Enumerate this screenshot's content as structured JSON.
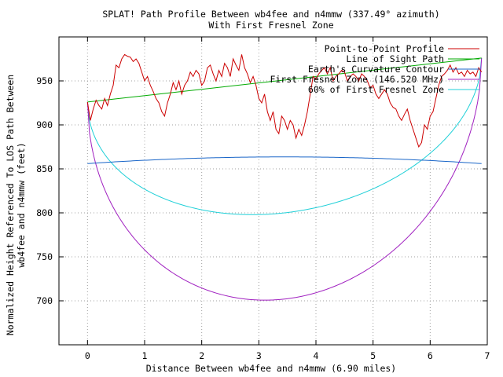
{
  "chart_data": {
    "type": "line",
    "title": "SPLAT! Path Profile Between wb4fee and n4mmw (337.49° azimuth)",
    "subtitle": "With First Fresnel Zone",
    "xlabel": "Distance Between wb4fee and n4mmw (6.90 miles)",
    "ylabel_line1": "Normalized Height Referenced To LOS Path Between",
    "ylabel_line2": "wb4fee and n4mmw (feet)",
    "xlim": [
      -0.5,
      7
    ],
    "ylim": [
      650,
      1000
    ],
    "xticks": [
      0,
      1,
      2,
      3,
      4,
      5,
      6,
      7
    ],
    "yticks": [
      700,
      750,
      800,
      850,
      900,
      950
    ],
    "grid": true,
    "legend_position": "top-right",
    "series": [
      {
        "name": "Point-to-Point Profile",
        "color": "#cc0000",
        "x": [
          0,
          0.05,
          0.1,
          0.15,
          0.2,
          0.25,
          0.3,
          0.35,
          0.4,
          0.45,
          0.5,
          0.55,
          0.6,
          0.65,
          0.7,
          0.75,
          0.8,
          0.85,
          0.9,
          0.95,
          1.0,
          1.05,
          1.1,
          1.15,
          1.2,
          1.25,
          1.3,
          1.35,
          1.4,
          1.45,
          1.5,
          1.55,
          1.6,
          1.65,
          1.7,
          1.75,
          1.8,
          1.85,
          1.9,
          1.95,
          2.0,
          2.05,
          2.1,
          2.15,
          2.2,
          2.25,
          2.3,
          2.35,
          2.4,
          2.45,
          2.5,
          2.55,
          2.6,
          2.65,
          2.7,
          2.75,
          2.8,
          2.85,
          2.9,
          2.95,
          3.0,
          3.05,
          3.1,
          3.15,
          3.2,
          3.25,
          3.3,
          3.35,
          3.4,
          3.45,
          3.5,
          3.55,
          3.6,
          3.65,
          3.7,
          3.75,
          3.8,
          3.85,
          3.9,
          3.95,
          4.0,
          4.05,
          4.1,
          4.15,
          4.2,
          4.25,
          4.3,
          4.35,
          4.4,
          4.45,
          4.5,
          4.55,
          4.6,
          4.65,
          4.7,
          4.75,
          4.8,
          4.85,
          4.9,
          4.95,
          5.0,
          5.05,
          5.1,
          5.15,
          5.2,
          5.25,
          5.3,
          5.35,
          5.4,
          5.45,
          5.5,
          5.55,
          5.6,
          5.65,
          5.7,
          5.75,
          5.8,
          5.85,
          5.9,
          5.95,
          6.0,
          6.05,
          6.1,
          6.15,
          6.2,
          6.25,
          6.3,
          6.35,
          6.4,
          6.45,
          6.5,
          6.55,
          6.6,
          6.65,
          6.7,
          6.75,
          6.8,
          6.85,
          6.9
        ],
        "y": [
          926,
          905,
          918,
          928,
          922,
          918,
          930,
          922,
          935,
          945,
          968,
          965,
          975,
          980,
          978,
          977,
          972,
          975,
          970,
          960,
          950,
          955,
          945,
          938,
          930,
          925,
          915,
          910,
          925,
          935,
          948,
          940,
          950,
          935,
          945,
          950,
          960,
          955,
          962,
          958,
          945,
          950,
          965,
          968,
          958,
          950,
          962,
          955,
          970,
          965,
          955,
          975,
          968,
          962,
          980,
          965,
          958,
          948,
          955,
          945,
          930,
          925,
          935,
          915,
          905,
          915,
          895,
          890,
          910,
          905,
          895,
          905,
          900,
          885,
          895,
          888,
          900,
          915,
          935,
          955,
          952,
          958,
          962,
          965,
          958,
          965,
          950,
          955,
          958,
          962,
          960,
          950,
          955,
          958,
          955,
          950,
          958,
          955,
          950,
          942,
          945,
          935,
          930,
          935,
          940,
          935,
          925,
          920,
          918,
          910,
          905,
          912,
          918,
          905,
          895,
          885,
          875,
          880,
          900,
          895,
          910,
          915,
          930,
          945,
          955,
          958,
          962,
          968,
          960,
          965,
          958,
          960,
          955,
          962,
          958,
          960,
          955,
          965,
          960
        ]
      },
      {
        "name": "Line of Sight Path",
        "color": "#00aa00",
        "x": [
          0,
          6.9
        ],
        "y": [
          926,
          976
        ]
      },
      {
        "name": "Earth's Curvature Contour",
        "color": "#1a66c8",
        "curve": "earth",
        "x_range": [
          0,
          6.9
        ],
        "end_value": 856,
        "peak_value": 863.6
      },
      {
        "name": "First Fresnel Zone (146.520 MHz)",
        "color": "#a020c0",
        "curve": "fresnel",
        "x_range": [
          0,
          6.9
        ],
        "min_value": 702
      },
      {
        "name": "60% of First Fresnel Zone",
        "color": "#20d0d8",
        "curve": "fresnel",
        "x_range": [
          0,
          6.9
        ],
        "min_value": 800
      }
    ]
  }
}
